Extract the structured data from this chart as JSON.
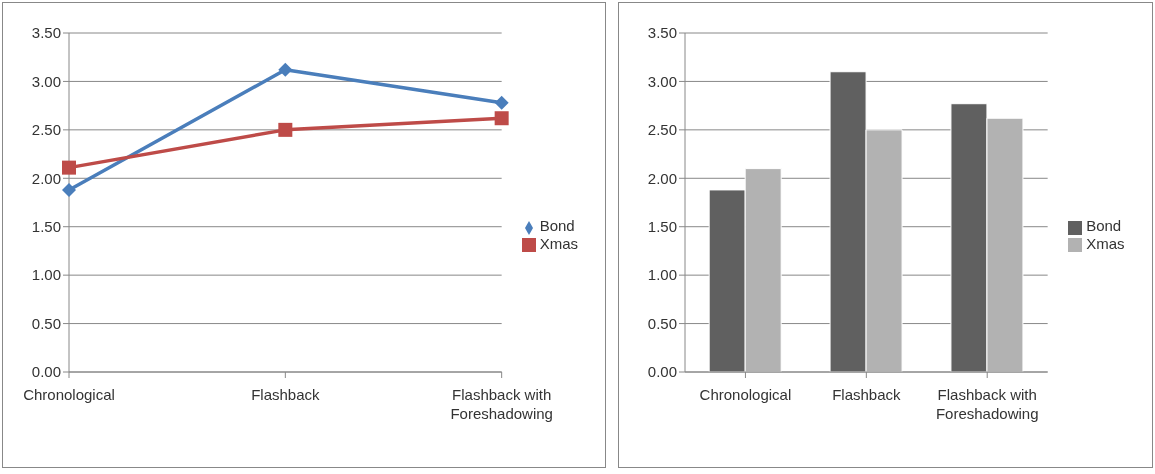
{
  "chart_data": [
    {
      "type": "line",
      "categories": [
        "Chronological",
        "Flashback",
        "Flashback with Foreshadowing"
      ],
      "series": [
        {
          "name": "Bond",
          "color": "#4a7ebb",
          "values": [
            1.88,
            3.12,
            2.78
          ],
          "marker": "diamond"
        },
        {
          "name": "Xmas",
          "color": "#be4b48",
          "values": [
            2.11,
            2.5,
            2.62
          ],
          "marker": "square"
        }
      ],
      "ylim": [
        0,
        3.5
      ],
      "yticks": [
        {
          "value": 0,
          "label": "0.00"
        },
        {
          "value": 0.5,
          "label": "0.50"
        },
        {
          "value": 1,
          "label": "1.00"
        },
        {
          "value": 1.5,
          "label": "1.50"
        },
        {
          "value": 2,
          "label": "2.00"
        },
        {
          "value": 2.5,
          "label": "2.50"
        },
        {
          "value": 3,
          "label": "3.00"
        },
        {
          "value": 3.5,
          "label": "3.50"
        }
      ],
      "grid": "y",
      "legend": "right",
      "line_style": "solid"
    },
    {
      "type": "bar",
      "categories": [
        "Chronological",
        "Flashback",
        "Flashback with Foreshadowing"
      ],
      "series": [
        {
          "name": "Bond",
          "color": "#606060",
          "values": [
            1.88,
            3.1,
            2.77
          ]
        },
        {
          "name": "Xmas",
          "color": "#b2b2b2",
          "values": [
            2.1,
            2.5,
            2.62
          ]
        }
      ],
      "ylim": [
        0,
        3.5
      ],
      "yticks": [
        {
          "value": 0,
          "label": "0.00"
        },
        {
          "value": 0.5,
          "label": "0.50"
        },
        {
          "value": 1,
          "label": "1.00"
        },
        {
          "value": 1.5,
          "label": "1.50"
        },
        {
          "value": 2,
          "label": "2.00"
        },
        {
          "value": 2.5,
          "label": "2.50"
        },
        {
          "value": 3,
          "label": "3.00"
        },
        {
          "value": 3.5,
          "label": "3.50"
        }
      ],
      "grid": "y",
      "legend": "right"
    }
  ]
}
